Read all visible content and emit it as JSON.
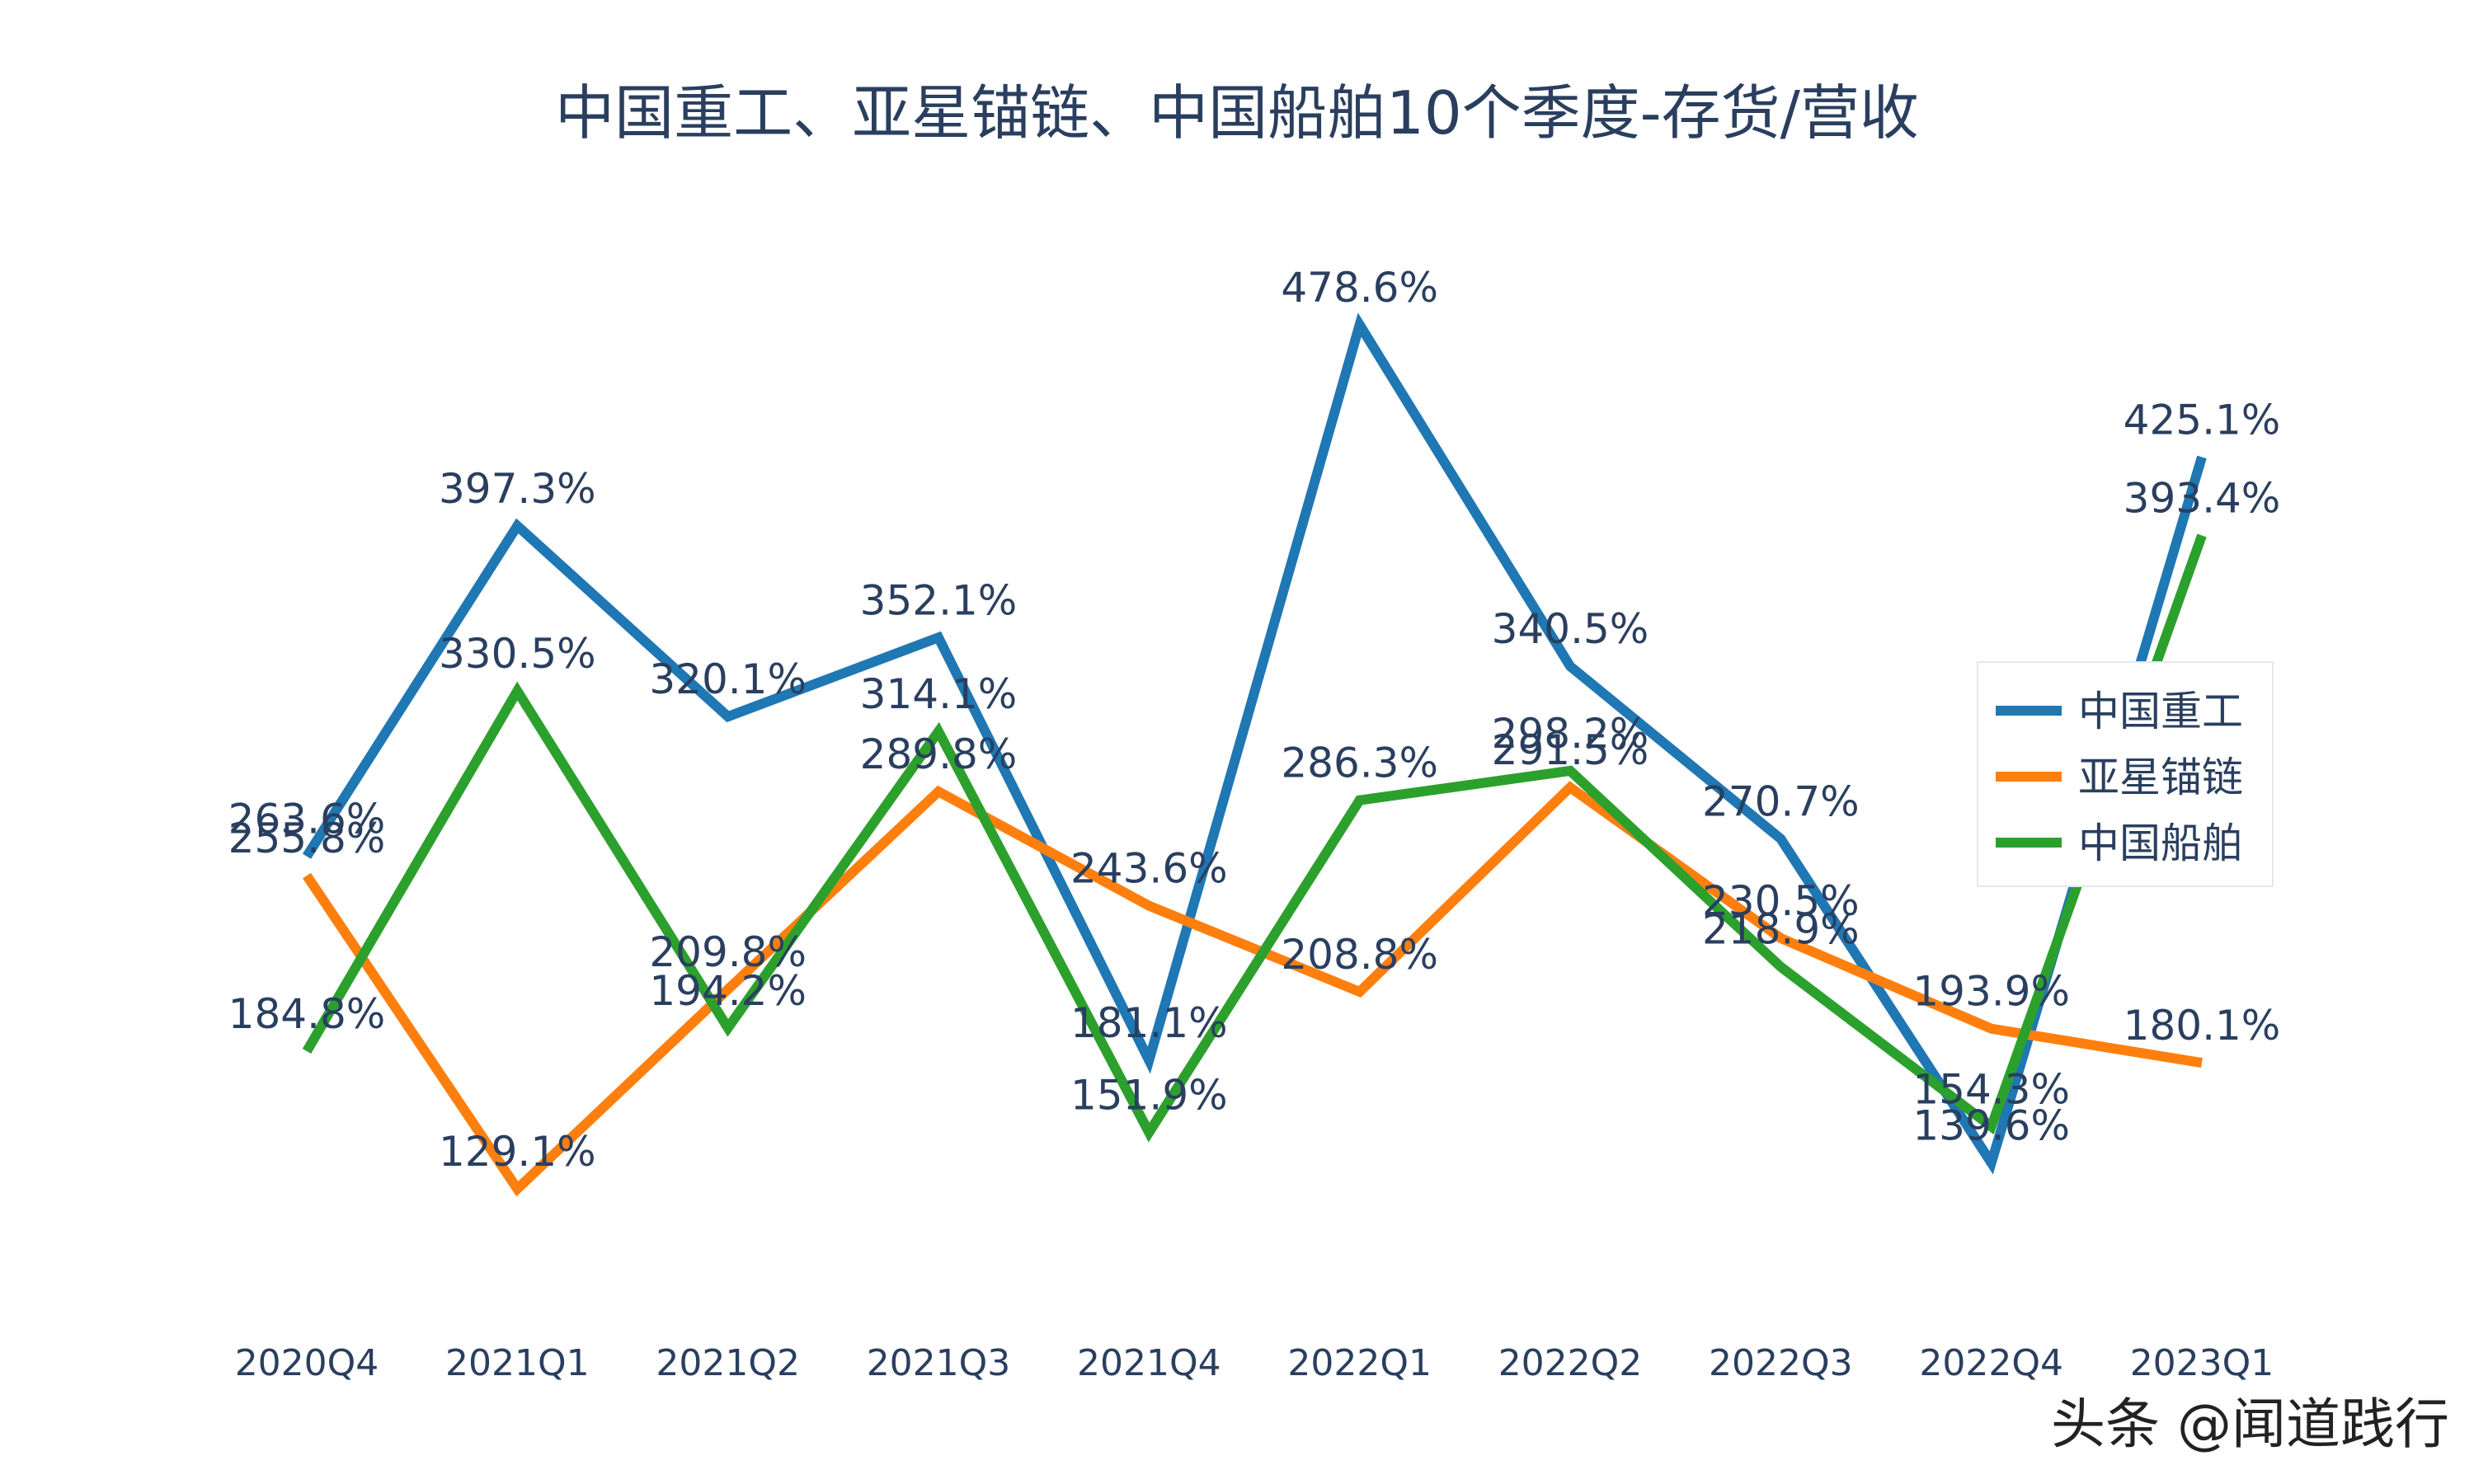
{
  "chart_data": {
    "type": "line",
    "title": "中国重工、亚星锚链、中国船舶10个季度-存货/营收",
    "xlabel": "",
    "ylabel": "",
    "categories": [
      "2020Q4",
      "2021Q1",
      "2021Q2",
      "2021Q3",
      "2021Q4",
      "2022Q1",
      "2022Q2",
      "2022Q3",
      "2022Q4",
      "2023Q1"
    ],
    "ylim": [
      100,
      500
    ],
    "grid": false,
    "legend_position": "right",
    "series": [
      {
        "name": "中国重工",
        "color": "#1f77b4",
        "values": [
          263.6,
          397.3,
          320.1,
          352.1,
          181.1,
          478.6,
          340.5,
          270.7,
          139.6,
          425.1
        ],
        "labels": [
          "263.6%",
          "397.3%",
          "320.1%",
          "352.1%",
          "181.1%",
          "478.6%",
          "340.5%",
          "270.7%",
          "139.6%",
          "425.1%"
        ]
      },
      {
        "name": "亚星锚链",
        "color": "#ff7f0e",
        "values": [
          255.8,
          129.1,
          209.8,
          289.8,
          243.6,
          208.8,
          291.5,
          230.5,
          193.9,
          180.1
        ],
        "labels": [
          "255.8%",
          "129.1%",
          "209.8%",
          "289.8%",
          "243.6%",
          "208.8%",
          "291.5%",
          "230.5%",
          "193.9%",
          "180.1%"
        ]
      },
      {
        "name": "中国船舶",
        "color": "#2ca02c",
        "values": [
          184.8,
          330.5,
          194.2,
          314.1,
          151.9,
          286.3,
          298.2,
          218.9,
          154.3,
          393.4
        ],
        "labels": [
          "184.8%",
          "330.5%",
          "194.2%",
          "314.1%",
          "151.9%",
          "286.3%",
          "298.2%",
          "218.9%",
          "154.3%",
          "393.4%"
        ]
      }
    ]
  },
  "watermark": "头条 @闻道践行"
}
